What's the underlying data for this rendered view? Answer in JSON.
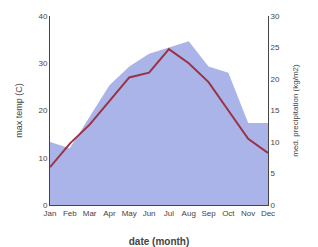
{
  "chart_data": {
    "type": "line",
    "categories": [
      "Jan",
      "Feb",
      "Mar",
      "Apr",
      "May",
      "Jun",
      "Jul",
      "Aug",
      "Sep",
      "Oct",
      "Nov",
      "Dec"
    ],
    "series": [
      {
        "type": "area",
        "color": "#aab4e8",
        "axis": "y2",
        "values": [
          10,
          9,
          14,
          19,
          22,
          24,
          25,
          26,
          22,
          21,
          13,
          13
        ]
      },
      {
        "type": "line",
        "color": "#993344",
        "values": [
          8,
          13,
          17,
          22,
          27,
          28,
          33,
          30,
          26,
          20,
          14,
          11
        ]
      }
    ],
    "xlabel": "date (month)",
    "ylabel": "max temp (C)",
    "y2label": "med. precipitation (kg/m2)",
    "ylim": [
      0,
      40
    ],
    "yticks": [
      0,
      10,
      20,
      30,
      40
    ],
    "y2lim": [
      0,
      30
    ],
    "y2ticks": [
      0,
      5,
      10,
      15,
      20,
      25,
      30
    ],
    "grid": false
  }
}
